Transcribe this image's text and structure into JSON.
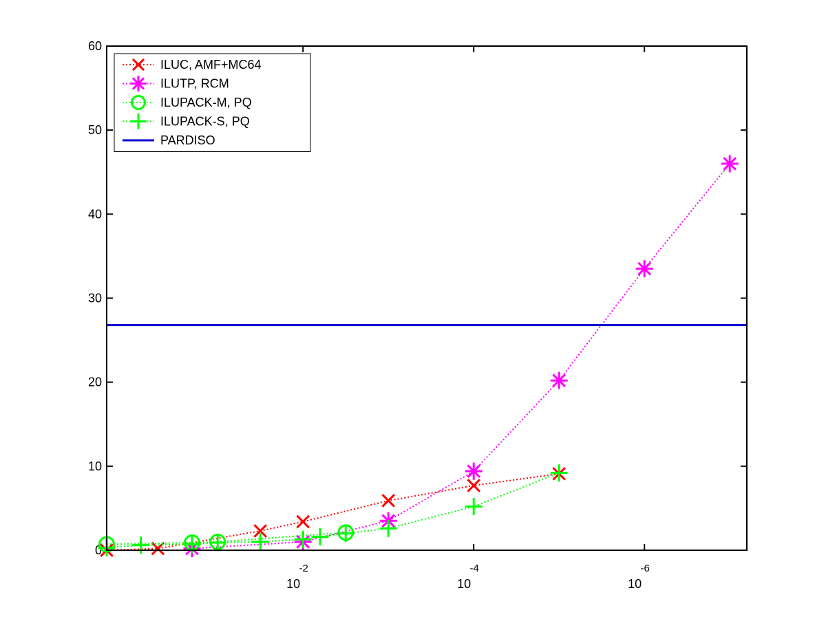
{
  "chart_data": {
    "type": "line",
    "title": "",
    "xlabel": "",
    "ylabel": "",
    "x_scale": "log",
    "x_direction": "decreasing",
    "x_range_exponent": [
      0.3,
      -7.2
    ],
    "ylim": [
      0,
      60
    ],
    "y_ticks": [
      "0",
      "10",
      "20",
      "30",
      "40",
      "50",
      "60"
    ],
    "x_ticks": [
      {
        "base": "10",
        "exponent": "-2",
        "value": -2
      },
      {
        "base": "10",
        "exponent": "-4",
        "value": -4
      },
      {
        "base": "10",
        "exponent": "-6",
        "value": -6
      }
    ],
    "legend": {
      "position": "top-left"
    },
    "series": [
      {
        "name": "ILUC, AMF+MC64",
        "color": "#ff0000",
        "line": "dotted",
        "marker": "x",
        "x_exp": [
          0.3,
          -0.3,
          -1.5,
          -2.0,
          -3.0,
          -4.0,
          -5.0
        ],
        "y": [
          0.0,
          0.2,
          2.3,
          3.4,
          5.9,
          7.7,
          9.1
        ]
      },
      {
        "name": "ILUTP, RCM",
        "color": "#ff00ff",
        "line": "dotted",
        "marker": "asterisk",
        "x_exp": [
          -0.7,
          -2.0,
          -3.0,
          -4.0,
          -5.0,
          -6.0,
          -7.0
        ],
        "y": [
          0.2,
          1.0,
          3.5,
          9.4,
          20.2,
          33.5,
          46.0
        ]
      },
      {
        "name": "ILUPACK-M, PQ",
        "color": "#00ff00",
        "line": "dotted",
        "marker": "circle",
        "x_exp": [
          0.3,
          -0.7,
          -1.0,
          -2.5
        ],
        "y": [
          0.7,
          0.9,
          1.0,
          2.1
        ]
      },
      {
        "name": "ILUPACK-S, PQ",
        "color": "#00ff00",
        "line": "dotted",
        "marker": "plus",
        "x_exp": [
          0.3,
          -0.1,
          -0.7,
          -1.0,
          -1.5,
          -2.0,
          -2.2,
          -2.5,
          -3.0,
          -4.0,
          -5.0
        ],
        "y": [
          0.3,
          0.6,
          0.7,
          0.9,
          1.0,
          1.3,
          1.6,
          2.0,
          2.6,
          5.2,
          9.2
        ]
      },
      {
        "name": "PARDISO",
        "color": "#0000cc",
        "line": "solid",
        "marker": "none",
        "x_exp": [
          0.3,
          -7.2
        ],
        "y": [
          26.8,
          26.8
        ]
      }
    ]
  }
}
